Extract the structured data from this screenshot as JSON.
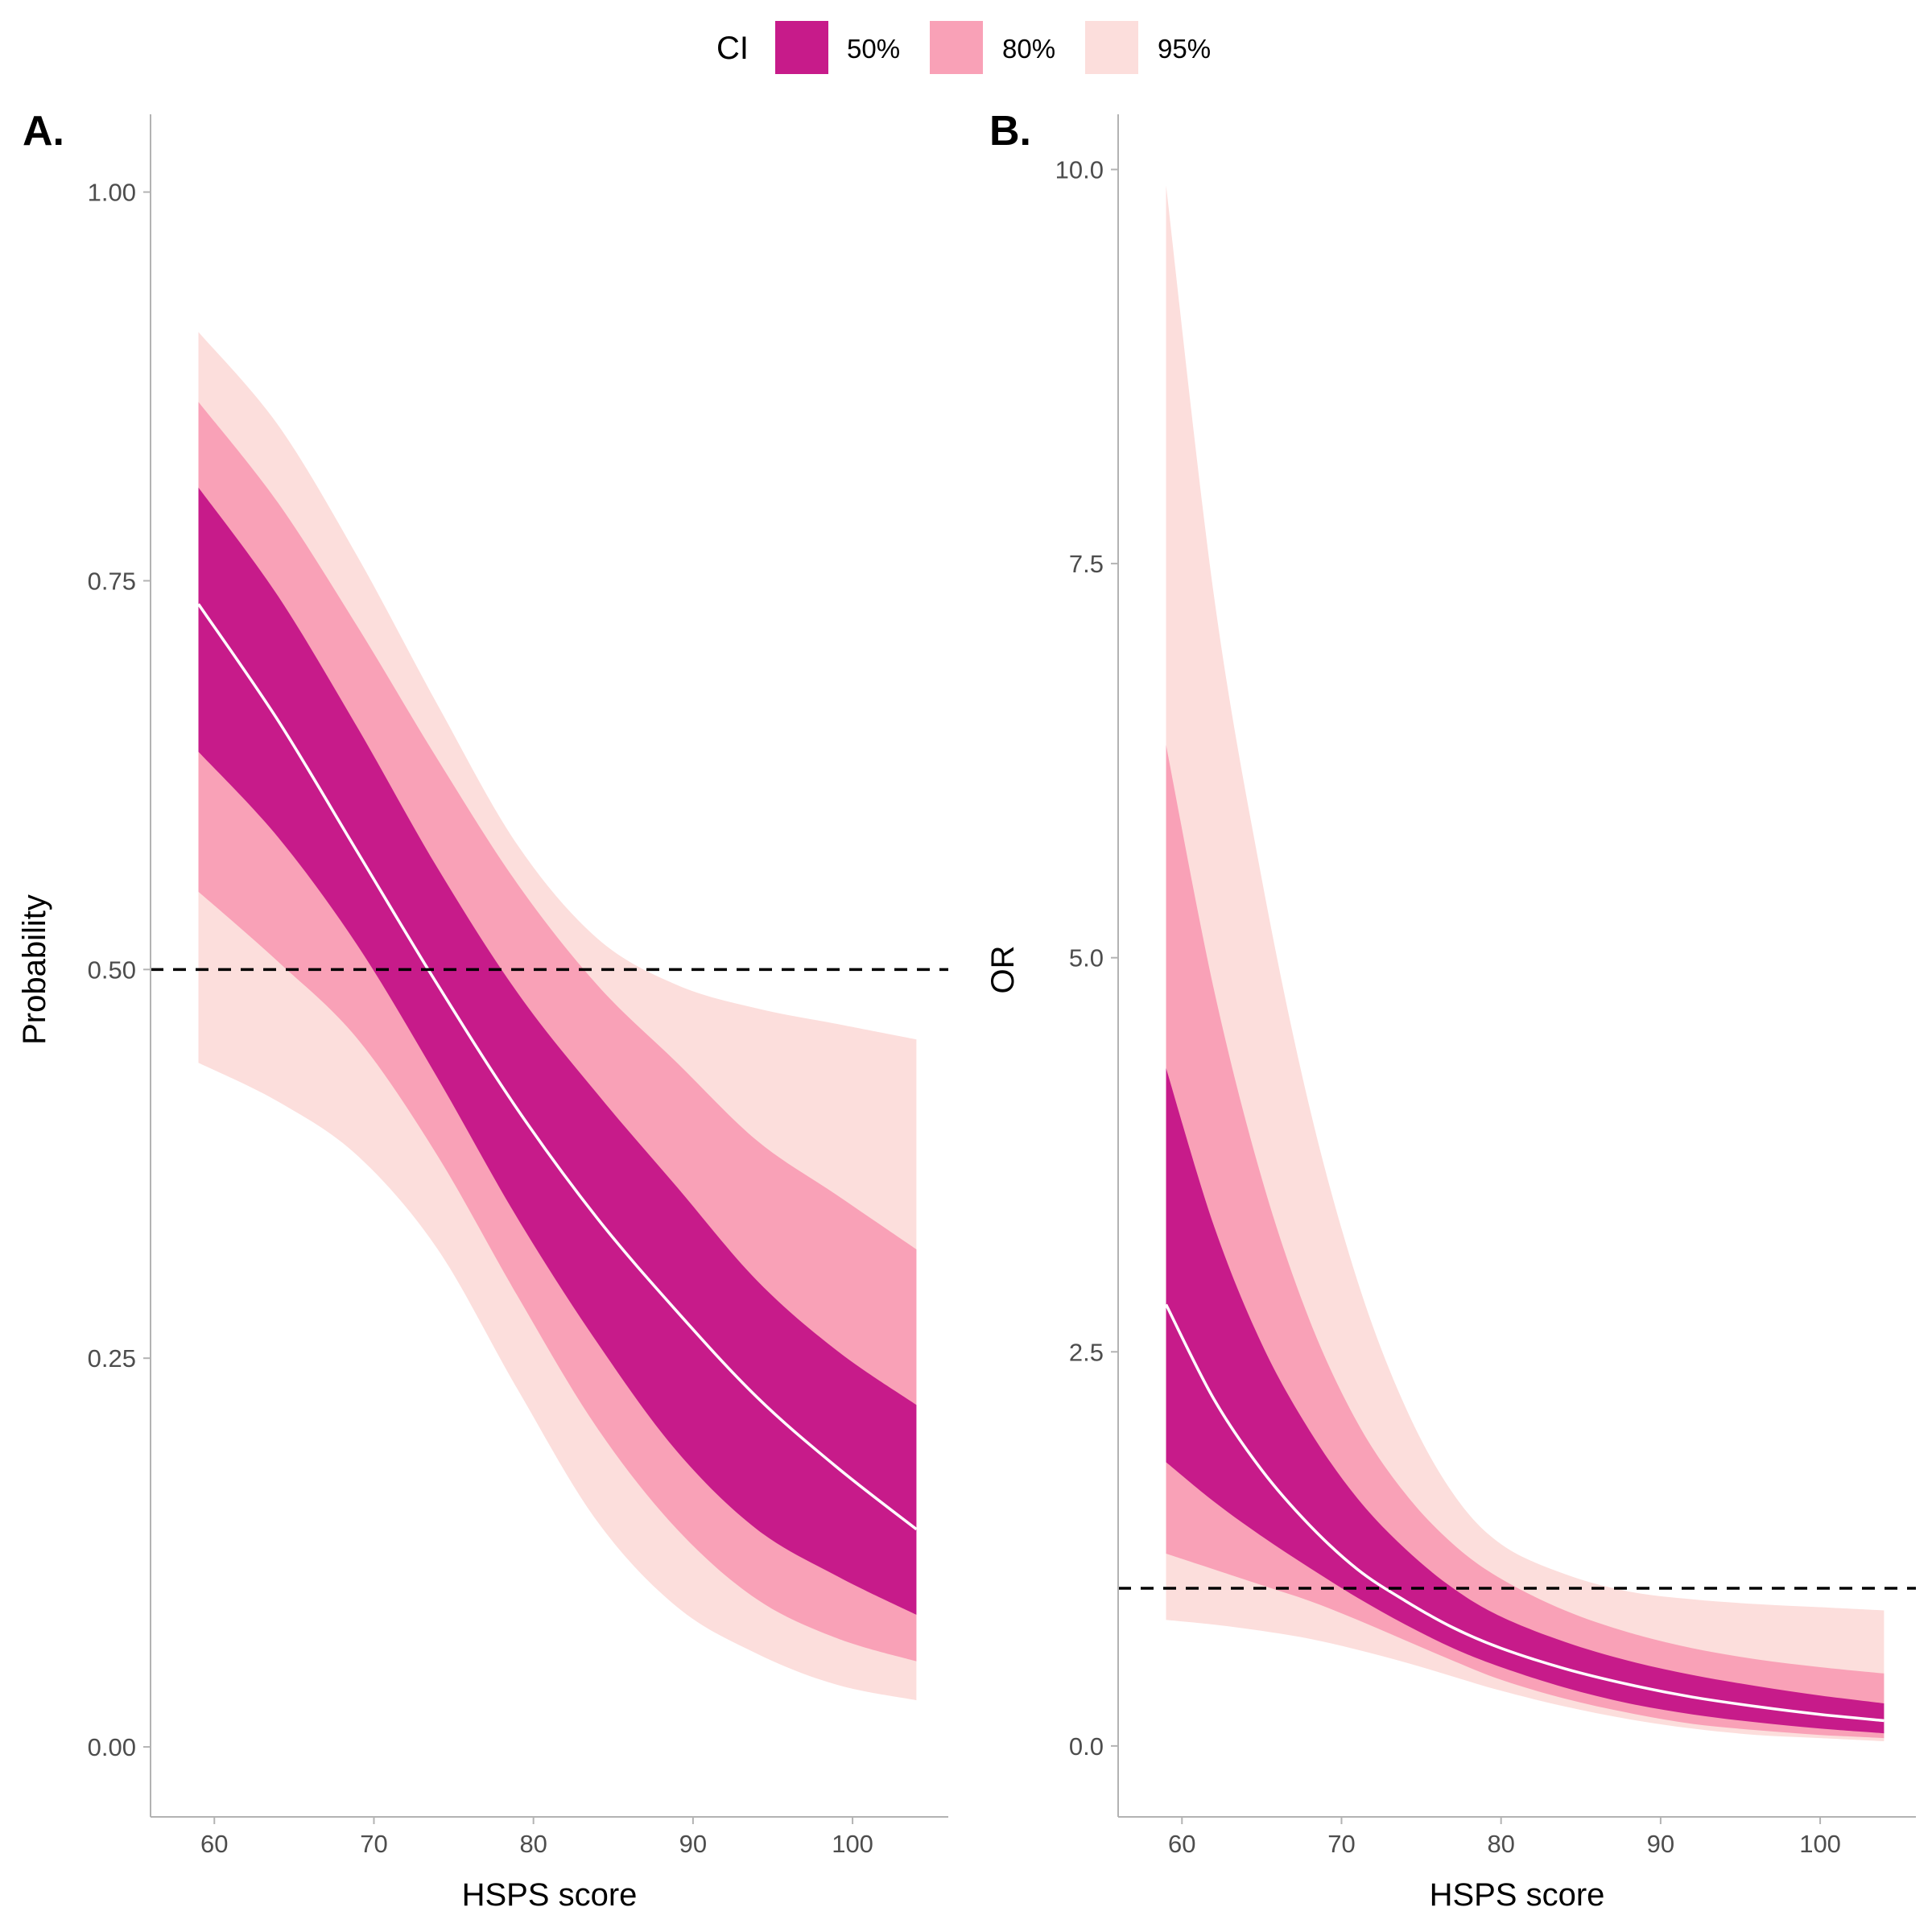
{
  "legend": {
    "title": "CI",
    "items": [
      {
        "label": "50%",
        "color": "#C71B8A"
      },
      {
        "label": "80%",
        "color": "#F9A1B7"
      },
      {
        "label": "95%",
        "color": "#FCDEDC"
      }
    ]
  },
  "colors": {
    "ci50": "#C71B8A",
    "ci80": "#F9A1B7",
    "ci95": "#FCDEDC",
    "median_line": "#FFFFFF",
    "reference_line": "#000000",
    "axis": "#b3b3b3",
    "tick_text": "#4d4d4d"
  },
  "chart_data": [
    {
      "type": "area",
      "panel_label": "A.",
      "xlabel": "HSPS score",
      "ylabel": "Probability",
      "xlim": [
        56,
        106
      ],
      "ylim": [
        -0.045,
        1.05
      ],
      "xticks": [
        60,
        70,
        80,
        90,
        100
      ],
      "xtick_labels": [
        "60",
        "70",
        "80",
        "90",
        "100"
      ],
      "yticks": [
        0,
        0.25,
        0.5,
        0.75,
        1.0
      ],
      "ytick_labels": [
        "0.00",
        "0.25",
        "0.50",
        "0.75",
        "1.00"
      ],
      "grid": false,
      "reference_line": {
        "y": 0.5,
        "style": "dashed"
      },
      "x": [
        59,
        64,
        69,
        74,
        79,
        84,
        89,
        94,
        99,
        104
      ],
      "median": [
        0.735,
        0.66,
        0.575,
        0.49,
        0.41,
        0.34,
        0.28,
        0.225,
        0.18,
        0.14
      ],
      "ci50": {
        "lower": [
          0.64,
          0.585,
          0.515,
          0.43,
          0.34,
          0.26,
          0.19,
          0.14,
          0.11,
          0.085
        ],
        "upper": [
          0.81,
          0.74,
          0.655,
          0.565,
          0.485,
          0.42,
          0.36,
          0.3,
          0.255,
          0.22
        ]
      },
      "ci80": {
        "lower": [
          0.55,
          0.505,
          0.455,
          0.38,
          0.29,
          0.205,
          0.14,
          0.095,
          0.07,
          0.055
        ],
        "upper": [
          0.865,
          0.8,
          0.72,
          0.635,
          0.555,
          0.49,
          0.44,
          0.39,
          0.355,
          0.32
        ]
      },
      "ci95": {
        "lower": [
          0.44,
          0.415,
          0.38,
          0.32,
          0.23,
          0.145,
          0.09,
          0.06,
          0.04,
          0.03
        ],
        "upper": [
          0.91,
          0.85,
          0.765,
          0.67,
          0.58,
          0.52,
          0.49,
          0.475,
          0.465,
          0.455
        ]
      }
    },
    {
      "type": "area",
      "panel_label": "B.",
      "xlabel": "HSPS score",
      "ylabel": "OR",
      "xlim": [
        56,
        106
      ],
      "ylim": [
        -0.45,
        10.35
      ],
      "xticks": [
        60,
        70,
        80,
        90,
        100
      ],
      "xtick_labels": [
        "60",
        "70",
        "80",
        "90",
        "100"
      ],
      "yticks": [
        0,
        2.5,
        5.0,
        7.5,
        10.0
      ],
      "ytick_labels": [
        "0.0",
        "2.5",
        "5.0",
        "7.5",
        "10.0"
      ],
      "grid": false,
      "reference_line": {
        "y": 1.0,
        "style": "dashed"
      },
      "x": [
        59,
        62,
        65,
        68,
        71,
        74,
        77,
        80,
        84,
        88,
        92,
        96,
        100,
        104
      ],
      "median": [
        2.8,
        2.2,
        1.75,
        1.4,
        1.12,
        0.92,
        0.75,
        0.62,
        0.49,
        0.39,
        0.31,
        0.25,
        0.2,
        0.16
      ],
      "ci50": {
        "lower": [
          1.8,
          1.55,
          1.33,
          1.13,
          0.94,
          0.77,
          0.62,
          0.5,
          0.37,
          0.27,
          0.2,
          0.15,
          0.11,
          0.08
        ],
        "upper": [
          4.3,
          3.3,
          2.55,
          2.0,
          1.57,
          1.25,
          1.0,
          0.82,
          0.66,
          0.54,
          0.45,
          0.38,
          0.32,
          0.27
        ]
      },
      "ci80": {
        "lower": [
          1.22,
          1.12,
          1.02,
          0.92,
          0.8,
          0.67,
          0.54,
          0.42,
          0.3,
          0.21,
          0.14,
          0.1,
          0.07,
          0.05
        ],
        "upper": [
          6.35,
          4.8,
          3.6,
          2.7,
          2.05,
          1.6,
          1.28,
          1.06,
          0.86,
          0.72,
          0.62,
          0.55,
          0.5,
          0.46
        ]
      },
      "ci95": {
        "lower": [
          0.8,
          0.77,
          0.73,
          0.68,
          0.61,
          0.53,
          0.44,
          0.35,
          0.25,
          0.17,
          0.11,
          0.07,
          0.05,
          0.03
        ],
        "upper": [
          9.9,
          7.3,
          5.5,
          4.05,
          2.95,
          2.15,
          1.6,
          1.28,
          1.09,
          0.98,
          0.93,
          0.9,
          0.88,
          0.86
        ]
      }
    }
  ]
}
